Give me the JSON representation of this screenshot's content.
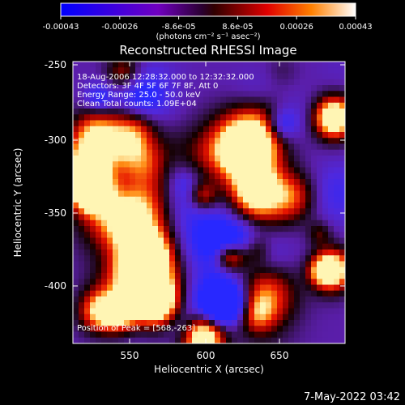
{
  "colorbar": {
    "ticks": [
      "-0.00043",
      "-0.00026",
      "-8.6e-05",
      "8.6e-05",
      "0.00026",
      "0.00043"
    ],
    "units": "(photons cm⁻² s⁻¹ asec⁻²)"
  },
  "plot": {
    "title": "Reconstructed RHESSI Image",
    "xlabel": "Heliocentric X (arcsec)",
    "ylabel": "Heliocentric Y (arcsec)",
    "xticks": [
      "550",
      "600",
      "650"
    ],
    "yticks": [
      "-250",
      "-300",
      "-350",
      "-400"
    ]
  },
  "overlay": {
    "line1": "18-Aug-2006 12:28:32.000 to 12:32:32.000",
    "line2": "Detectors: 3F 4F 5F 6F 7F 8F, Att 0",
    "line3": "Energy Range: 25.0 - 50.0 keV",
    "line4": "Clean    Total counts: 1.09E+04",
    "peak": "Position of Peak = [568,-263]"
  },
  "footer": {
    "timestamp": "7-May-2022 03:42"
  },
  "chart_data": {
    "type": "heatmap",
    "title": "Reconstructed RHESSI Image",
    "xlabel": "Heliocentric X (arcsec)",
    "ylabel": "Heliocentric Y (arcsec)",
    "xlim": [
      504,
      696
    ],
    "ylim": [
      -444,
      -246
    ],
    "color_range": [
      -0.00043,
      0.00043
    ],
    "peak": [
      568,
      -263
    ]
  }
}
